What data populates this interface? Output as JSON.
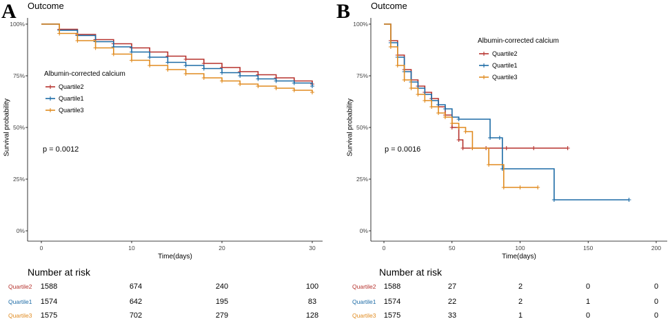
{
  "chart_data": [
    {
      "type": "line",
      "panel_letter": "A",
      "title": "Outcome",
      "xlabel": "Time(days)",
      "ylabel": "Survival probability",
      "xlim": [
        0,
        30
      ],
      "ylim": [
        0,
        1
      ],
      "x_ticks": [
        "0",
        "10",
        "20",
        "30"
      ],
      "y_ticks": [
        "0%",
        "25%",
        "50%",
        "75%",
        "100%"
      ],
      "p_value": "p = 0.0012",
      "legend": {
        "title": "Albumin-corrected calcium",
        "items": [
          "Quartile2",
          "Quartile1",
          "Quartile3"
        ]
      },
      "series": [
        {
          "name": "Quartile2",
          "color": "#b5312c",
          "x": [
            0,
            2,
            4,
            6,
            8,
            10,
            12,
            14,
            16,
            18,
            20,
            22,
            24,
            26,
            28,
            30
          ],
          "y": [
            1.0,
            0.975,
            0.95,
            0.925,
            0.905,
            0.885,
            0.865,
            0.845,
            0.83,
            0.81,
            0.79,
            0.77,
            0.755,
            0.74,
            0.725,
            0.71
          ]
        },
        {
          "name": "Quartile1",
          "color": "#1b6aa5",
          "x": [
            0,
            2,
            4,
            6,
            8,
            10,
            12,
            14,
            16,
            18,
            20,
            22,
            24,
            26,
            28,
            30
          ],
          "y": [
            1.0,
            0.97,
            0.945,
            0.915,
            0.89,
            0.865,
            0.84,
            0.815,
            0.8,
            0.785,
            0.765,
            0.75,
            0.735,
            0.725,
            0.715,
            0.7
          ]
        },
        {
          "name": "Quartile3",
          "color": "#e08a1e",
          "x": [
            0,
            2,
            4,
            6,
            8,
            10,
            12,
            14,
            16,
            18,
            20,
            22,
            24,
            26,
            28,
            30
          ],
          "y": [
            1.0,
            0.955,
            0.92,
            0.885,
            0.855,
            0.825,
            0.8,
            0.78,
            0.76,
            0.74,
            0.725,
            0.71,
            0.7,
            0.69,
            0.68,
            0.67
          ]
        }
      ],
      "risk_table": {
        "title": "Number at risk",
        "rows": [
          {
            "name": "Quartile2",
            "values": [
              "1588",
              "674",
              "240",
              "100"
            ]
          },
          {
            "name": "Quartile1",
            "values": [
              "1574",
              "642",
              "195",
              "83"
            ]
          },
          {
            "name": "Quartile3",
            "values": [
              "1575",
              "702",
              "279",
              "128"
            ]
          }
        ]
      }
    },
    {
      "type": "line",
      "panel_letter": "B",
      "title": "Outcome",
      "xlabel": "Time(days)",
      "ylabel": "Survival probability",
      "xlim": [
        0,
        200
      ],
      "ylim": [
        0,
        1
      ],
      "x_ticks": [
        "0",
        "50",
        "100",
        "150",
        "200"
      ],
      "y_ticks": [
        "0%",
        "25%",
        "50%",
        "75%",
        "100%"
      ],
      "p_value": "p = 0.0016",
      "legend": {
        "title": "Albumin-corrected calcium",
        "items": [
          "Quartile2",
          "Quartile1",
          "Quartile3"
        ]
      },
      "series": [
        {
          "name": "Quartile2",
          "color": "#b5312c",
          "x": [
            0,
            5,
            10,
            15,
            20,
            25,
            30,
            35,
            40,
            45,
            50,
            55,
            58,
            65,
            75,
            90,
            110,
            135
          ],
          "y": [
            1.0,
            0.92,
            0.85,
            0.78,
            0.73,
            0.7,
            0.67,
            0.64,
            0.6,
            0.56,
            0.5,
            0.44,
            0.4,
            0.4,
            0.4,
            0.4,
            0.4,
            0.4
          ]
        },
        {
          "name": "Quartile1",
          "color": "#1b6aa5",
          "x": [
            0,
            5,
            10,
            15,
            20,
            25,
            30,
            35,
            40,
            45,
            50,
            55,
            78,
            85,
            87,
            125,
            180
          ],
          "y": [
            1.0,
            0.91,
            0.84,
            0.77,
            0.72,
            0.69,
            0.66,
            0.63,
            0.61,
            0.59,
            0.55,
            0.54,
            0.45,
            0.45,
            0.3,
            0.15,
            0.15
          ]
        },
        {
          "name": "Quartile3",
          "color": "#e08a1e",
          "x": [
            0,
            5,
            10,
            15,
            20,
            25,
            30,
            35,
            40,
            45,
            50,
            55,
            60,
            65,
            77,
            88,
            100,
            113
          ],
          "y": [
            1.0,
            0.89,
            0.8,
            0.73,
            0.69,
            0.66,
            0.63,
            0.6,
            0.57,
            0.55,
            0.52,
            0.5,
            0.48,
            0.4,
            0.32,
            0.21,
            0.21,
            0.21
          ]
        }
      ],
      "risk_table": {
        "title": "Number at risk",
        "rows": [
          {
            "name": "Quartile2",
            "values": [
              "1588",
              "27",
              "2",
              "0",
              "0"
            ]
          },
          {
            "name": "Quartile1",
            "values": [
              "1574",
              "22",
              "2",
              "1",
              "0"
            ]
          },
          {
            "name": "Quartile3",
            "values": [
              "1575",
              "33",
              "1",
              "0",
              "0"
            ]
          }
        ]
      }
    }
  ]
}
